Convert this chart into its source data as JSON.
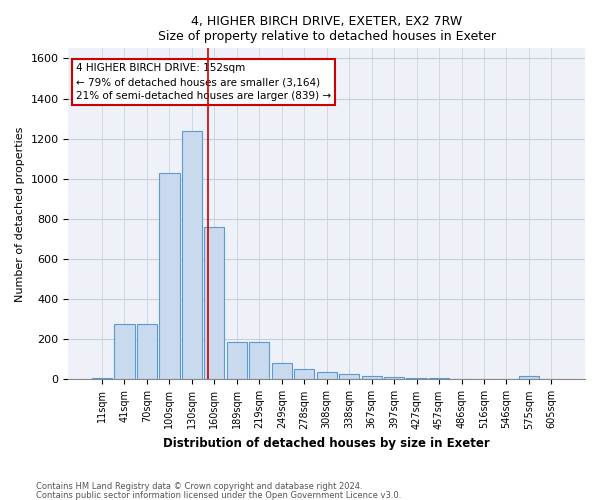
{
  "title1": "4, HIGHER BIRCH DRIVE, EXETER, EX2 7RW",
  "title2": "Size of property relative to detached houses in Exeter",
  "xlabel": "Distribution of detached houses by size in Exeter",
  "ylabel": "Number of detached properties",
  "categories": [
    "11sqm",
    "41sqm",
    "70sqm",
    "100sqm",
    "130sqm",
    "160sqm",
    "189sqm",
    "219sqm",
    "249sqm",
    "278sqm",
    "308sqm",
    "338sqm",
    "367sqm",
    "397sqm",
    "427sqm",
    "457sqm",
    "486sqm",
    "516sqm",
    "546sqm",
    "575sqm",
    "605sqm"
  ],
  "values": [
    5,
    275,
    275,
    1030,
    1240,
    760,
    185,
    185,
    80,
    50,
    35,
    25,
    15,
    10,
    5,
    5,
    2,
    0,
    0,
    15,
    0
  ],
  "bar_color": "#c9d9ee",
  "bar_edge_color": "#5b9bd5",
  "vline_color": "#cc0000",
  "annotation_text": "4 HIGHER BIRCH DRIVE: 152sqm\n← 79% of detached houses are smaller (3,164)\n21% of semi-detached houses are larger (839) →",
  "annotation_box_color": "white",
  "annotation_box_edge": "#cc0000",
  "ylim": [
    0,
    1650
  ],
  "yticks": [
    0,
    200,
    400,
    600,
    800,
    1000,
    1200,
    1400,
    1600
  ],
  "footer1": "Contains HM Land Registry data © Crown copyright and database right 2024.",
  "footer2": "Contains public sector information licensed under the Open Government Licence v3.0.",
  "bg_color": "#ffffff",
  "plot_bg_color": "#eef1f8",
  "grid_color": "#c8cdd8"
}
